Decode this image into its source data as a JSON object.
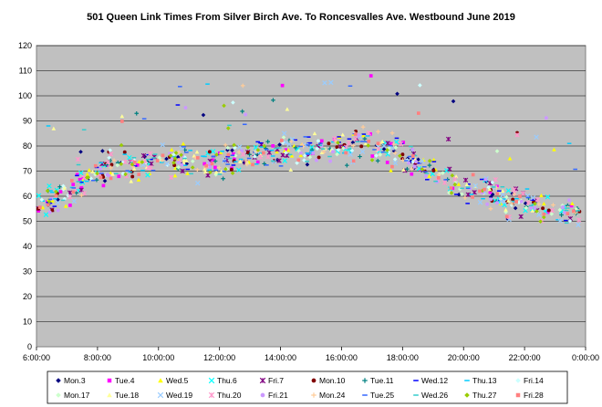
{
  "chart_data": {
    "type": "scatter",
    "title": "501 Queen Link Times From Silver Birch Ave. To Roncesvalles Ave. Westbound June 2019",
    "xlabel": "",
    "ylabel": "",
    "x_domain_hours": [
      6,
      24
    ],
    "x_ticks": [
      "6:00:00",
      "8:00:00",
      "10:00:00",
      "12:00:00",
      "14:00:00",
      "16:00:00",
      "18:00:00",
      "20:00:00",
      "22:00:00",
      "0:00:00"
    ],
    "ylim": [
      0,
      120
    ],
    "y_ticks": [
      0,
      10,
      20,
      30,
      40,
      50,
      60,
      70,
      80,
      90,
      100,
      110,
      120
    ],
    "grid": true,
    "plot_background": "#c0c0c0",
    "legend_position": "bottom",
    "trend_profile": {
      "note_hours": [
        6,
        7,
        8,
        9,
        10,
        11,
        12,
        13,
        14,
        15,
        16,
        17,
        18,
        19,
        20,
        21,
        22,
        23,
        24
      ],
      "typical_minutes": [
        55,
        60,
        70,
        73,
        75,
        74,
        73,
        76,
        78,
        79,
        80,
        80,
        77,
        70,
        63,
        60,
        57,
        55,
        52
      ]
    },
    "series": [
      {
        "name": "Mon.3",
        "color": "#000080",
        "marker": "diamond"
      },
      {
        "name": "Tue.4",
        "color": "#ff00ff",
        "marker": "square"
      },
      {
        "name": "Wed.5",
        "color": "#ffff00",
        "marker": "triangle"
      },
      {
        "name": "Thu.6",
        "color": "#00ffff",
        "marker": "x"
      },
      {
        "name": "Fri.7",
        "color": "#800080",
        "marker": "star"
      },
      {
        "name": "Mon.10",
        "color": "#800000",
        "marker": "circle"
      },
      {
        "name": "Tue.11",
        "color": "#008080",
        "marker": "plus"
      },
      {
        "name": "Wed.12",
        "color": "#0000ff",
        "marker": "dash"
      },
      {
        "name": "Thu.13",
        "color": "#00ccff",
        "marker": "dash"
      },
      {
        "name": "Fri.14",
        "color": "#ccffff",
        "marker": "diamond"
      },
      {
        "name": "Mon.17",
        "color": "#ccffcc",
        "marker": "diamond"
      },
      {
        "name": "Tue.18",
        "color": "#ffff99",
        "marker": "triangle"
      },
      {
        "name": "Wed.19",
        "color": "#99ccff",
        "marker": "x"
      },
      {
        "name": "Thu.20",
        "color": "#ff99cc",
        "marker": "star"
      },
      {
        "name": "Fri.21",
        "color": "#cc99ff",
        "marker": "circle"
      },
      {
        "name": "Mon.24",
        "color": "#ffcc99",
        "marker": "plus"
      },
      {
        "name": "Tue.25",
        "color": "#3366ff",
        "marker": "dash"
      },
      {
        "name": "Wed.26",
        "color": "#33cccc",
        "marker": "dash"
      },
      {
        "name": "Thu.27",
        "color": "#99cc00",
        "marker": "diamond"
      },
      {
        "name": "Fri.28",
        "color": "#ff8080",
        "marker": "square"
      }
    ]
  }
}
